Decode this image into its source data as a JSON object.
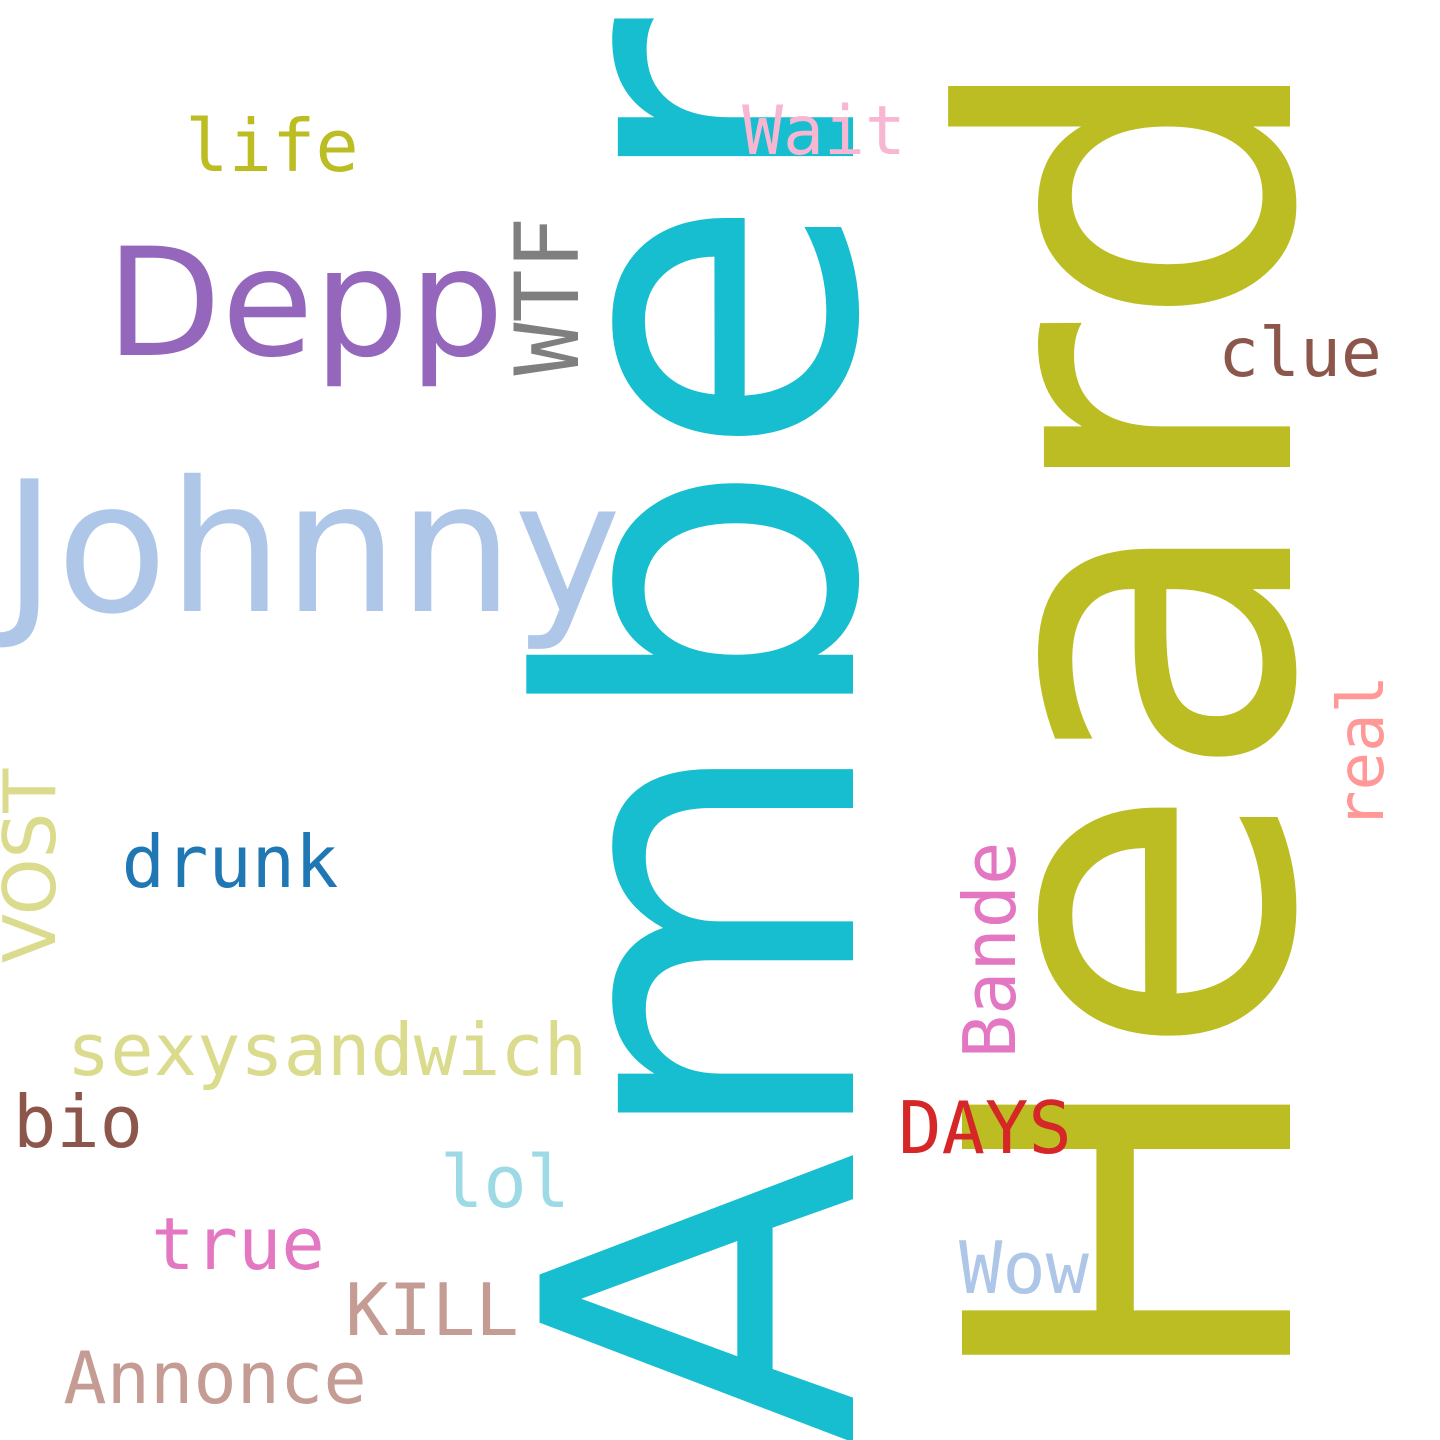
{
  "words": [
    {
      "name": "word-amber",
      "text": "Amber",
      "color": "#17becf"
    },
    {
      "name": "word-heard",
      "text": "Heard",
      "color": "#bcbd22"
    },
    {
      "name": "word-johnny",
      "text": "Johnny",
      "color": "#aec7e8"
    },
    {
      "name": "word-depp",
      "text": "Depp",
      "color": "#9467bd"
    },
    {
      "name": "word-wtf",
      "text": "WTF",
      "color": "#7f7f7f"
    },
    {
      "name": "word-life",
      "text": "life",
      "color": "#bcbd22"
    },
    {
      "name": "word-wait",
      "text": "Wait",
      "color": "#f7b6d2"
    },
    {
      "name": "word-clue",
      "text": "clue",
      "color": "#8c564b"
    },
    {
      "name": "word-real",
      "text": "real",
      "color": "#ff9896"
    },
    {
      "name": "word-drunk",
      "text": "drunk",
      "color": "#1f77b4"
    },
    {
      "name": "word-vost",
      "text": "VOST",
      "color": "#dbdb8d"
    },
    {
      "name": "word-bande",
      "text": "Bande",
      "color": "#e377c2"
    },
    {
      "name": "word-sexysandwich",
      "text": "sexysandwich",
      "color": "#dbdb8d"
    },
    {
      "name": "word-bio",
      "text": "bio",
      "color": "#8c564b"
    },
    {
      "name": "word-days",
      "text": "DAYS",
      "color": "#d62728"
    },
    {
      "name": "word-lol",
      "text": "lol",
      "color": "#9edae5"
    },
    {
      "name": "word-true",
      "text": "true",
      "color": "#e377c2"
    },
    {
      "name": "word-wow",
      "text": "Wow",
      "color": "#aec7e8"
    },
    {
      "name": "word-kill",
      "text": "KILL",
      "color": "#c49c94"
    },
    {
      "name": "word-annonce",
      "text": "Annonce",
      "color": "#c49c94"
    }
  ]
}
